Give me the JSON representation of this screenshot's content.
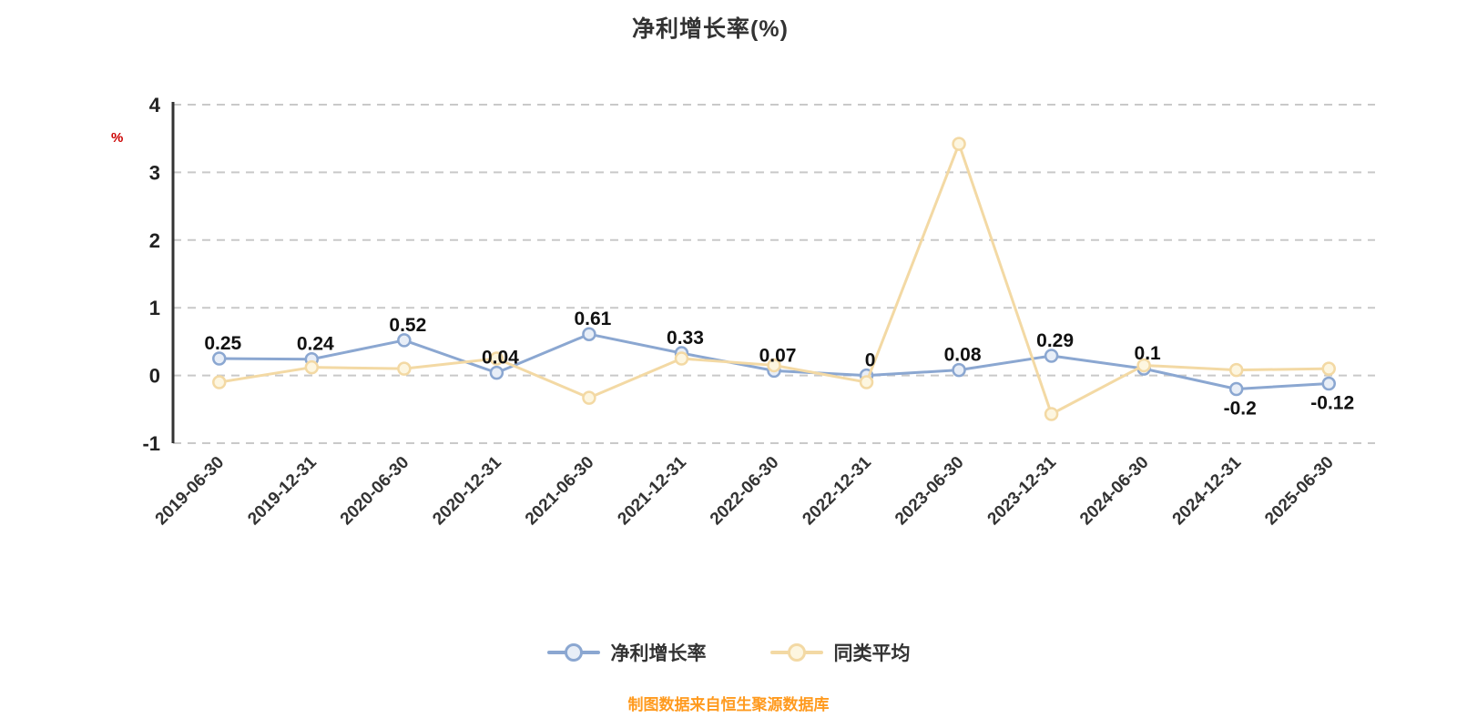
{
  "title": "净利增长率(%)",
  "y_unit": "%",
  "footer": "制图数据来自恒生聚源数据库",
  "colors": {
    "grid": "#c9c9c9",
    "axis": "#333333",
    "tick": "#222222",
    "x_label": "#333333",
    "data_label": "#111111",
    "unit": "#cc0000",
    "footer": "#ff9a1e"
  },
  "chart_data": {
    "type": "line",
    "title": "净利增长率(%)",
    "categories": [
      "2019-06-30",
      "2019-12-31",
      "2020-06-30",
      "2020-12-31",
      "2021-06-30",
      "2021-12-31",
      "2022-06-30",
      "2022-12-31",
      "2023-06-30",
      "2023-12-31",
      "2024-06-30",
      "2024-12-31",
      "2025-06-30"
    ],
    "series": [
      {
        "name": "净利增长率",
        "color": "#8ba7d1",
        "marker_fill": "#e8eef7",
        "values": [
          0.25,
          0.24,
          0.52,
          0.04,
          0.61,
          0.33,
          0.07,
          0,
          0.08,
          0.29,
          0.1,
          -0.2,
          -0.12
        ],
        "labels": [
          "0.25",
          "0.24",
          "0.52",
          "0.04",
          "0.61",
          "0.33",
          "0.07",
          "0",
          "0.08",
          "0.29",
          "0.1",
          "-0.2",
          "-0.12"
        ]
      },
      {
        "name": "同类平均",
        "color": "#f3d9a4",
        "marker_fill": "#fdf6e0",
        "values": [
          -0.1,
          0.12,
          0.1,
          0.25,
          -0.33,
          0.25,
          0.15,
          -0.1,
          3.42,
          -0.57,
          0.15,
          0.08,
          0.1
        ]
      }
    ],
    "ylim": [
      -1,
      4
    ],
    "yticks": [
      4,
      3,
      2,
      1,
      0,
      -1
    ],
    "grid": "horizontal-dashed",
    "legend_position": "bottom"
  }
}
